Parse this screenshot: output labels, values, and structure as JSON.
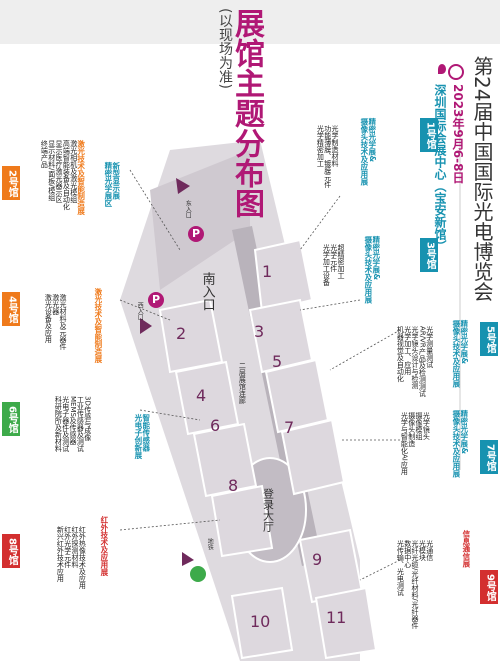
{
  "header": {
    "title": "展馆主题分布图",
    "subtitle": "(以现场为准)",
    "event_title": "第24届中国国际光电博览会",
    "event_date": "2023年9月6-8日",
    "venue": "深圳国际会展中心（宝安新馆）"
  },
  "colors": {
    "title_magenta": "#b01875",
    "teal": "#1792b0",
    "orange": "#ef7a1b",
    "green": "#3daa4a",
    "red": "#d32f2f",
    "hall_fill": "#d8d3d9",
    "corridor": "#b9b3bb",
    "deep_purple": "#6f2a5c"
  },
  "halls": [
    {
      "tag": "1号馆",
      "theme": [
        "精密光学展&",
        "摄像头技术及应用展"
      ],
      "items": [
        "光学制造材料",
        "功能薄膜、镀膜元件",
        "光学精密加工"
      ]
    },
    {
      "tag": "2号馆",
      "theme": [
        "新型显示展",
        "精密光学展区"
      ],
      "items": [
        "激光技术及智能制造展",
        "激光相机及激光模组",
        "高端智能装备及自动化",
        "显示医疗激光器示区",
        "显示材料/面板/模组",
        "终端产品"
      ]
    },
    {
      "tag": "3号馆",
      "theme": [
        "精密光学展&",
        "摄像头技术及应用展"
      ],
      "items": [
        "超精密加工",
        "光学元件",
        "光学加工设备"
      ]
    },
    {
      "tag": "4号馆",
      "theme": [
        "激光技术及智能制造展"
      ],
      "items": [
        "激光材料及元器件",
        "激光器",
        "激光设备及应用"
      ]
    },
    {
      "tag": "5号馆",
      "theme": [
        "精密光学展&",
        "摄像头技术及应用展"
      ],
      "items": [
        "光学测量测试",
        "AR/VR产品及检测测试",
        "光学镜头设计与检测",
        "光学加工、应用",
        "机器视觉及自动化"
      ]
    },
    {
      "tag": "6号馆",
      "theme": [
        "智能传感器",
        "光电子创新展"
      ],
      "items": [
        "3D传感与成像",
        "工业传感器及测试",
        "MEMS及传感器",
        "光电子器件及测试",
        "科研院所及新材料"
      ]
    },
    {
      "tag": "7号馆",
      "theme": [
        "精密光学展&",
        "摄像头技术及应用展"
      ],
      "items": [
        "光学镜头",
        "摄像模组",
        "摄像头制造",
        "光学与智能化AI应用"
      ]
    },
    {
      "tag": "8号馆",
      "theme": [
        "红外技术及应用展"
      ],
      "items": [
        "红外热像技术及应用",
        "红外探测材料",
        "红外光学元件",
        "新兴红外技术应用"
      ]
    },
    {
      "tag": "9号馆",
      "theme": [
        "信息通信展"
      ],
      "items": [
        "光通信",
        "光模块",
        "光纤光缆/光纤材料/光纤器件",
        "数据中心",
        "光传输、光电测试"
      ]
    }
  ],
  "map": {
    "numbers": [
      "1",
      "2",
      "3",
      "4",
      "5",
      "6",
      "7",
      "8",
      "9",
      "10",
      "11"
    ],
    "entrance_label": "南入口",
    "corridor_label": "二层展馆连廊",
    "central_hall_label": "登录大厅",
    "gate_label_1": "东入口",
    "gate_label_2": "西入口",
    "parking_label": "停车场",
    "metro_label": "地铁"
  }
}
